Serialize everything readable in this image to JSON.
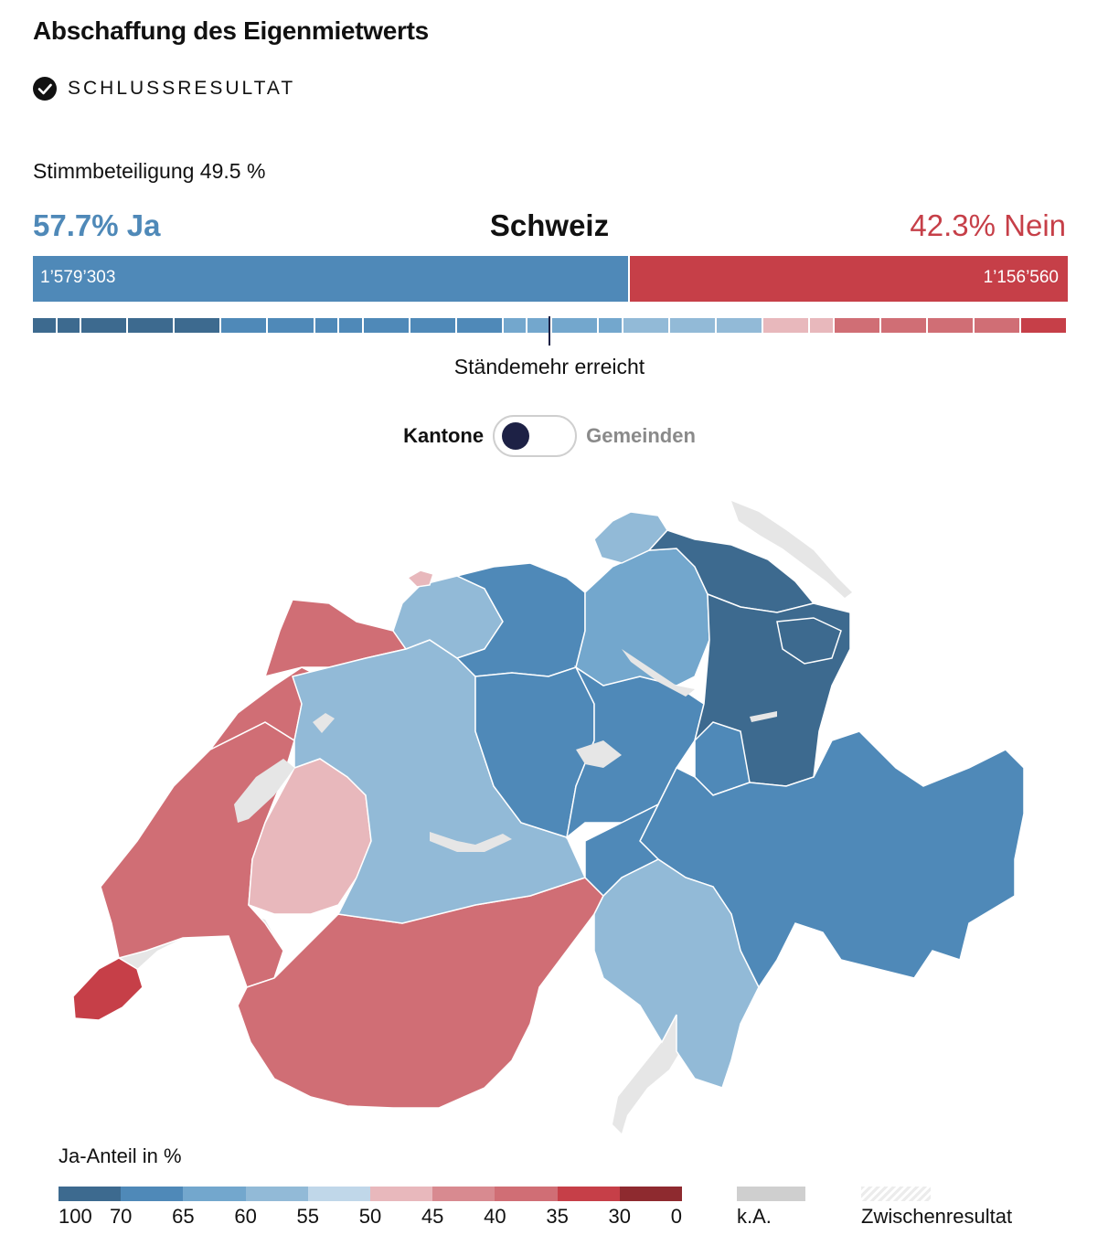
{
  "title": "Abschaffung des Eigenmietwerts",
  "status": {
    "icon": "check-circle-icon",
    "label": "SCHLUSSRESULTAT"
  },
  "turnout": "Stimmbeteiligung 49.5 %",
  "summary": {
    "yes_label": "57.7% Ja",
    "no_label": "42.3% Nein",
    "region": "Schweiz",
    "yes_share": 57.7,
    "no_share": 42.3,
    "yes_count": "1’579’303",
    "no_count": "1’156’560"
  },
  "canton_strip": {
    "majority_label": "Ständemehr erreicht",
    "segments": [
      {
        "weight": 1,
        "color": "#3d6a8f"
      },
      {
        "weight": 1,
        "color": "#3d6a8f"
      },
      {
        "weight": 2,
        "color": "#3d6a8f"
      },
      {
        "weight": 2,
        "color": "#3d6a8f"
      },
      {
        "weight": 2,
        "color": "#3d6a8f"
      },
      {
        "weight": 2,
        "color": "#4f89b8"
      },
      {
        "weight": 2,
        "color": "#4f89b8"
      },
      {
        "weight": 1,
        "color": "#4f89b8"
      },
      {
        "weight": 1,
        "color": "#4f89b8"
      },
      {
        "weight": 2,
        "color": "#4f89b8"
      },
      {
        "weight": 2,
        "color": "#4f89b8"
      },
      {
        "weight": 2,
        "color": "#4f89b8"
      },
      {
        "weight": 1,
        "color": "#73a7cd"
      },
      {
        "weight": 1,
        "color": "#73a7cd"
      },
      {
        "weight": 2,
        "color": "#73a7cd"
      },
      {
        "weight": 1,
        "color": "#73a7cd"
      },
      {
        "weight": 2,
        "color": "#92bad7"
      },
      {
        "weight": 2,
        "color": "#92bad7"
      },
      {
        "weight": 2,
        "color": "#92bad7"
      },
      {
        "weight": 2,
        "color": "#e8b8bc"
      },
      {
        "weight": 1,
        "color": "#e8b8bc"
      },
      {
        "weight": 2,
        "color": "#d06e75"
      },
      {
        "weight": 2,
        "color": "#d06e75"
      },
      {
        "weight": 2,
        "color": "#d06e75"
      },
      {
        "weight": 2,
        "color": "#d06e75"
      },
      {
        "weight": 2,
        "color": "#c63f48"
      }
    ]
  },
  "toggle": {
    "left": "Kantone",
    "right": "Gemeinden",
    "active": "Kantone"
  },
  "map": {
    "colors": {
      "c100": "#3d6a8f",
      "c70": "#4f89b8",
      "c65": "#73a7cd",
      "c60": "#92bad7",
      "c50": "#e8b8bc",
      "c40": "#d06e75",
      "c30": "#c63f48",
      "lake": "#e6e6e6"
    }
  },
  "legend": {
    "title": "Ja-Anteil in %",
    "colors": [
      "#3d6a8f",
      "#4f89b8",
      "#73a7cd",
      "#92bad7",
      "#c0d7e9",
      "#e8b8bc",
      "#d88a90",
      "#d06e75",
      "#c63f48",
      "#8e2a2f"
    ],
    "ticks": [
      "100",
      "70",
      "65",
      "60",
      "55",
      "50",
      "45",
      "40",
      "35",
      "30",
      "0"
    ],
    "na_label": "k.A.",
    "interim_label": "Zwischenresultat"
  }
}
